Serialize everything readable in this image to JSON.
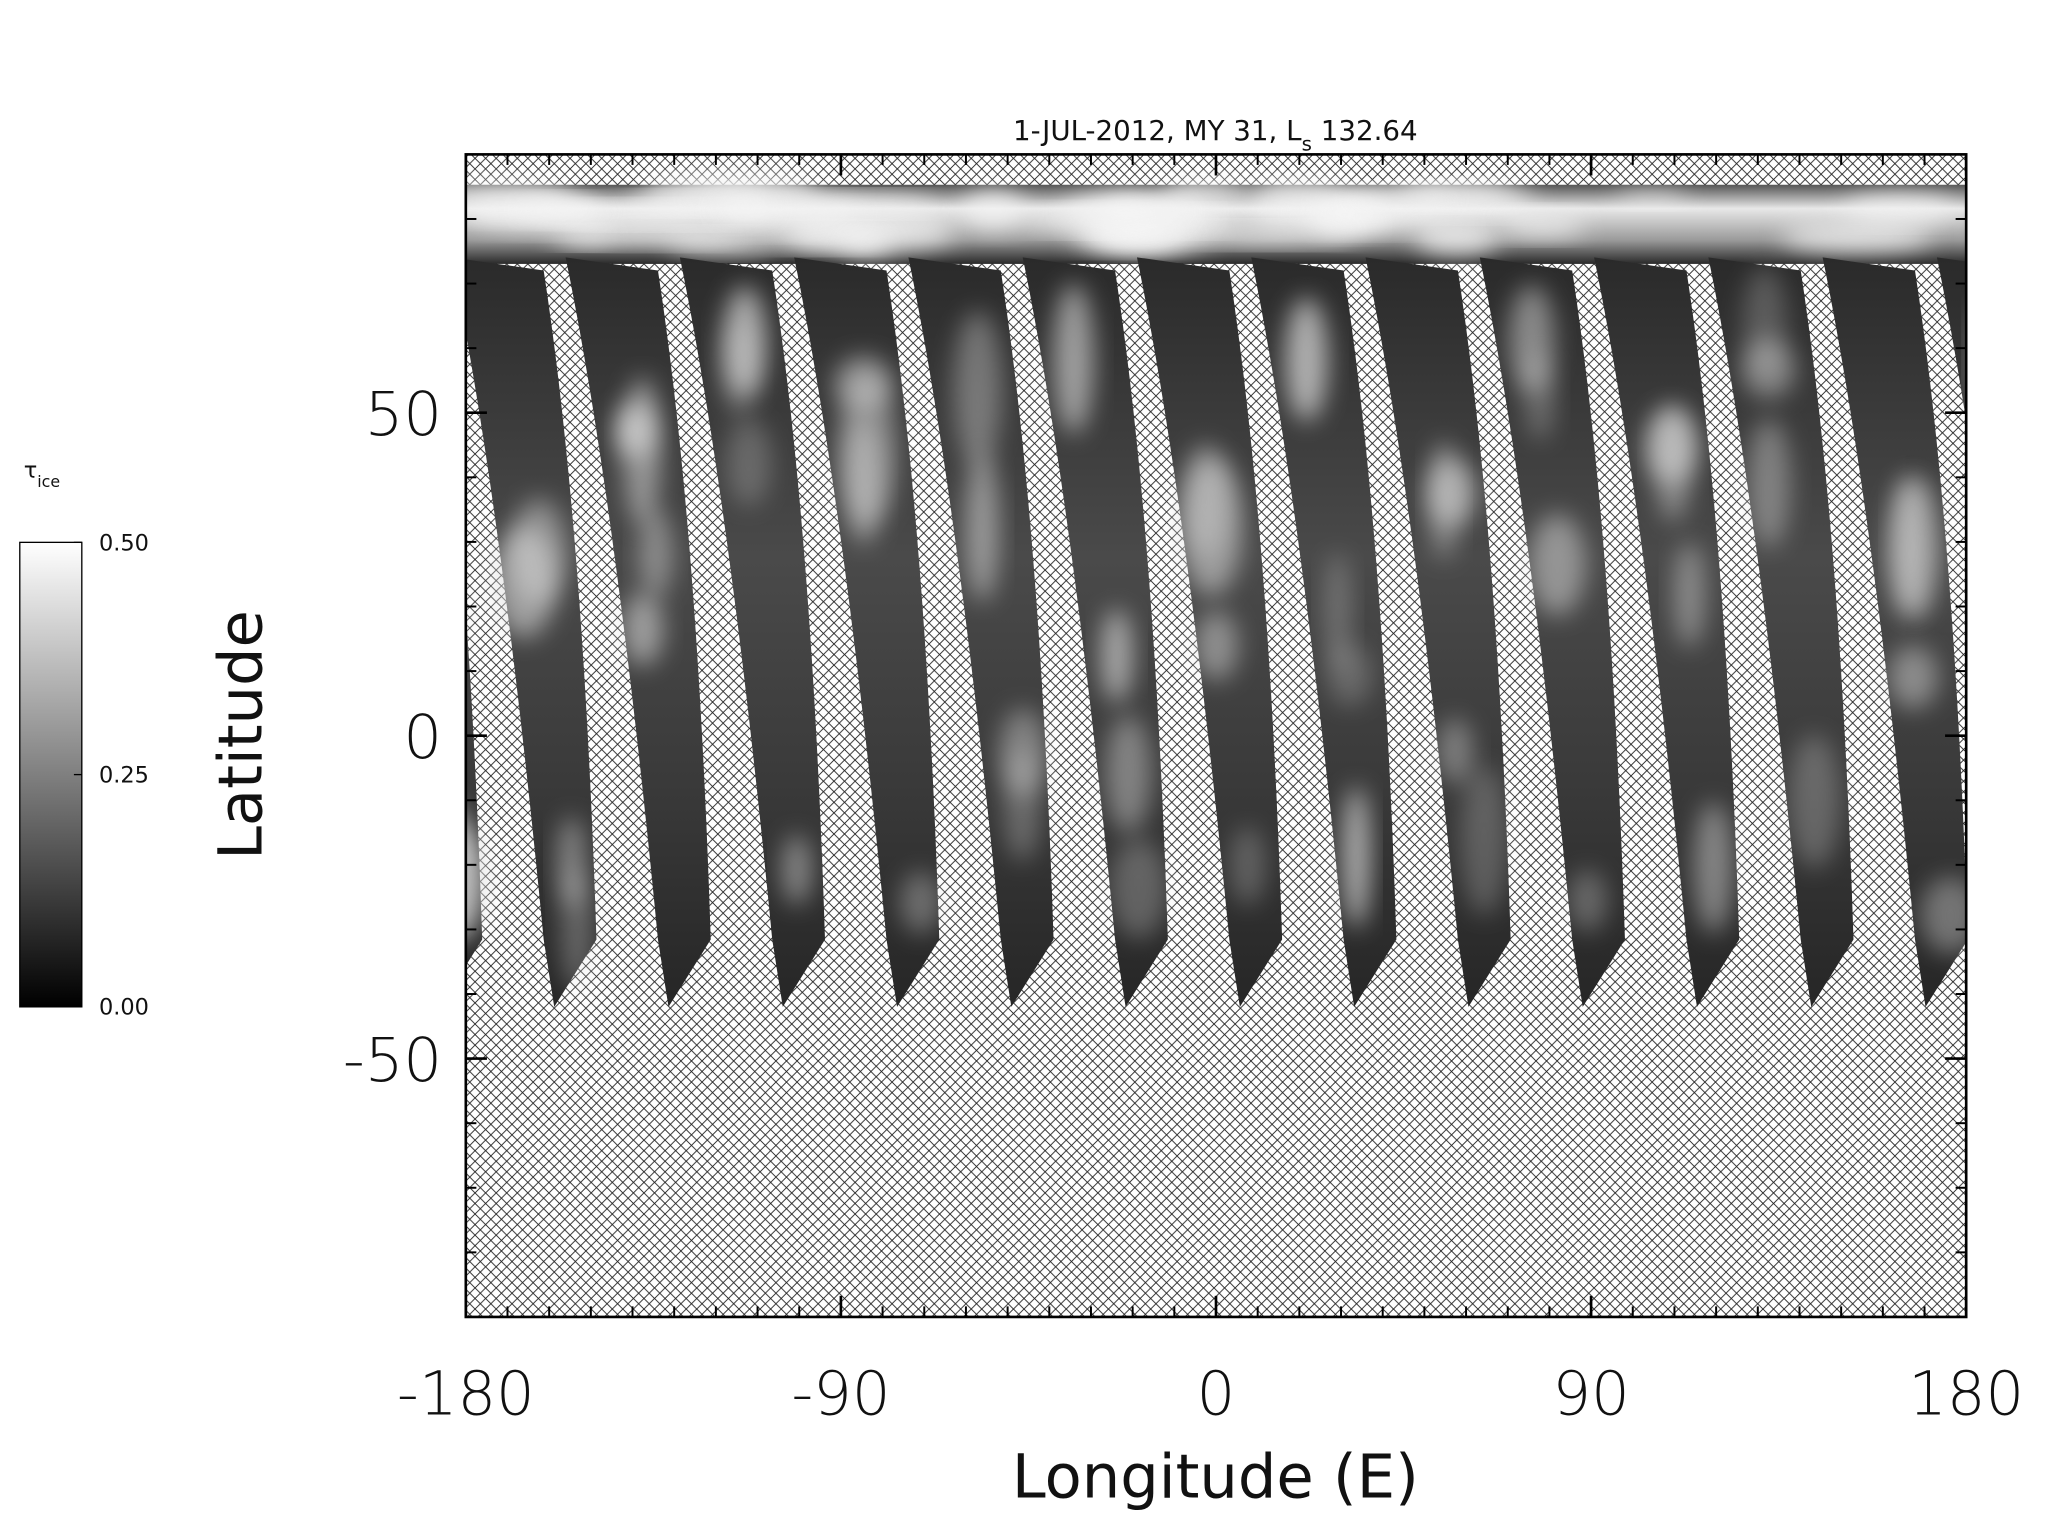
{
  "chart_data": {
    "type": "map",
    "title": [
      "1-JUL-2012, MY 31,  L",
      "s",
      " 132.64"
    ],
    "xlabel": "Longitude (E)",
    "ylabel": "Latitude",
    "xlim": [
      -180,
      180
    ],
    "xticks": [
      -180,
      -90,
      0,
      90,
      180
    ],
    "ylim": [
      -90,
      90
    ],
    "yticks": [
      -50,
      0,
      50
    ],
    "minor_tick_step": 10,
    "colormap": "gray",
    "colorbar": {
      "label": [
        "τ",
        "ice"
      ],
      "lim": [
        0,
        0.5
      ],
      "ticks": [
        {
          "value": 0,
          "label": "0.00"
        },
        {
          "value": 0.25,
          "label": "0.25"
        },
        {
          "value": 0.5,
          "label": "0.50"
        }
      ]
    }
  }
}
